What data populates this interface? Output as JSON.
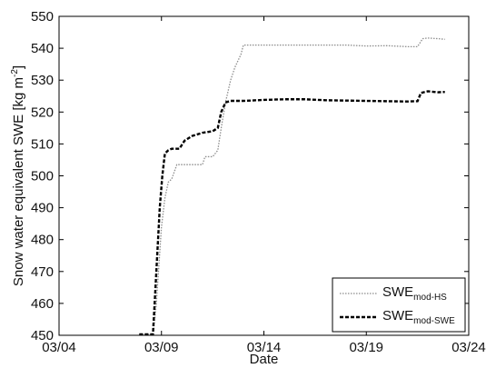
{
  "chart_data": {
    "type": "line",
    "xlabel": "Date",
    "ylabel": {
      "main": "Snow water equivalent SWE [kg m",
      "sup": "-2",
      "close": "]"
    },
    "xlim": [
      "03/04",
      "03/24"
    ],
    "ylim": [
      450,
      550
    ],
    "x_ticks": [
      "03/04",
      "03/09",
      "03/14",
      "03/19",
      "03/24"
    ],
    "y_ticks": [
      450,
      460,
      470,
      480,
      490,
      500,
      510,
      520,
      530,
      540,
      550
    ],
    "grid": false,
    "legend_position": "bottom-right",
    "series": [
      {
        "name": {
          "base": "SWE",
          "sub": "mod-HS"
        },
        "style": "dotted",
        "color": "#8c8c8c",
        "points": [
          [
            "03/07 22:00",
            450.3
          ],
          [
            "03/08 14:00",
            450.3
          ],
          [
            "03/08 15:00",
            452
          ],
          [
            "03/08 18:00",
            460
          ],
          [
            "03/08 21:00",
            472
          ],
          [
            "03/09 00:00",
            484
          ],
          [
            "03/09 04:00",
            493
          ],
          [
            "03/09 08:00",
            498
          ],
          [
            "03/09 12:00",
            499
          ],
          [
            "03/09 18:00",
            503.5
          ],
          [
            "03/10 12:00",
            503.5
          ],
          [
            "03/11 00:00",
            503.5
          ],
          [
            "03/11 03:00",
            506
          ],
          [
            "03/11 12:00",
            506
          ],
          [
            "03/11 18:00",
            508
          ],
          [
            "03/11 22:00",
            515
          ],
          [
            "03/12 03:00",
            523
          ],
          [
            "03/12 09:00",
            530
          ],
          [
            "03/12 14:00",
            534
          ],
          [
            "03/12 21:00",
            538
          ],
          [
            "03/13 00:00",
            541
          ],
          [
            "03/14 00:00",
            541
          ],
          [
            "03/15 00:00",
            541
          ],
          [
            "03/16 00:00",
            541
          ],
          [
            "03/17 00:00",
            541
          ],
          [
            "03/18 00:00",
            541
          ],
          [
            "03/19 00:00",
            540.7
          ],
          [
            "03/20 00:00",
            540.8
          ],
          [
            "03/21 00:00",
            540.5
          ],
          [
            "03/21 12:00",
            540.5
          ],
          [
            "03/21 18:00",
            543
          ],
          [
            "03/22 00:00",
            543.2
          ],
          [
            "03/22 12:00",
            543
          ],
          [
            "03/22 20:00",
            542.8
          ]
        ]
      },
      {
        "name": {
          "base": "SWE",
          "sub": "mod-SWE"
        },
        "style": "dashed",
        "color": "#000000",
        "points": [
          [
            "03/07 22:00",
            450.3
          ],
          [
            "03/08 14:00",
            450.3
          ],
          [
            "03/08 16:00",
            460
          ],
          [
            "03/08 19:00",
            475
          ],
          [
            "03/08 22:00",
            490
          ],
          [
            "03/09 01:00",
            500
          ],
          [
            "03/09 04:00",
            507
          ],
          [
            "03/09 08:00",
            508
          ],
          [
            "03/09 12:00",
            508.5
          ],
          [
            "03/09 21:00",
            508.5
          ],
          [
            "03/10 03:00",
            511
          ],
          [
            "03/10 12:00",
            512.5
          ],
          [
            "03/11 00:00",
            513.5
          ],
          [
            "03/11 12:00",
            514
          ],
          [
            "03/11 18:00",
            515
          ],
          [
            "03/11 22:00",
            520
          ],
          [
            "03/12 03:00",
            523
          ],
          [
            "03/12 09:00",
            523.5
          ],
          [
            "03/13 00:00",
            523.5
          ],
          [
            "03/14 00:00",
            523.8
          ],
          [
            "03/15 00:00",
            524
          ],
          [
            "03/16 00:00",
            524
          ],
          [
            "03/17 00:00",
            523.7
          ],
          [
            "03/18 00:00",
            523.6
          ],
          [
            "03/19 00:00",
            523.5
          ],
          [
            "03/20 00:00",
            523.4
          ],
          [
            "03/21 00:00",
            523.3
          ],
          [
            "03/21 12:00",
            523.4
          ],
          [
            "03/21 16:00",
            526
          ],
          [
            "03/22 00:00",
            526.5
          ],
          [
            "03/22 12:00",
            526.2
          ],
          [
            "03/22 20:00",
            526.3
          ]
        ]
      }
    ]
  }
}
